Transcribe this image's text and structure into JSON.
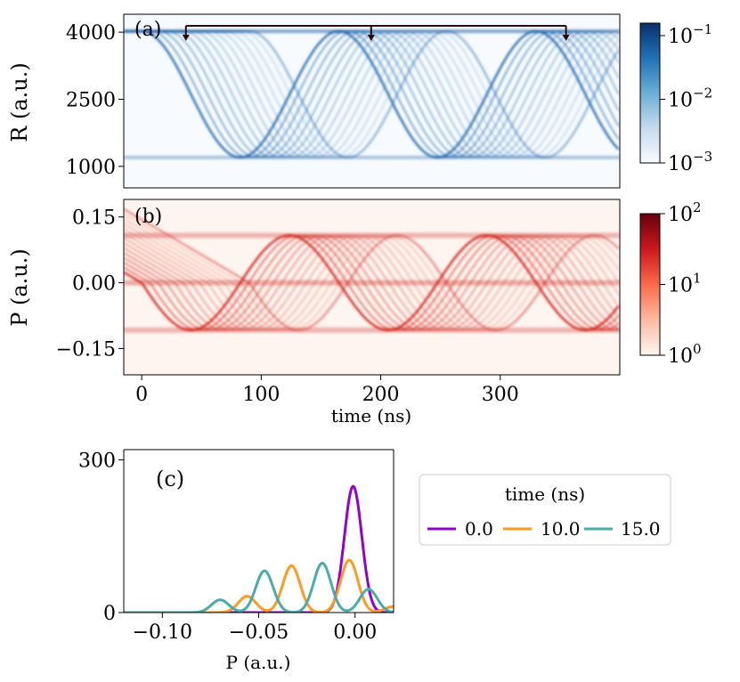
{
  "chart_data": [
    {
      "id": "a",
      "type": "heatmap",
      "panel_label": "(a)",
      "ylabel": "R (a.u.)",
      "xlim": [
        -15,
        400
      ],
      "ylim": [
        520,
        4400
      ],
      "yticks": [
        1000,
        2500,
        4000
      ],
      "ytick_labels": [
        "1000",
        "2500",
        "4000"
      ],
      "colormap": "Blues",
      "color_scale": "log",
      "colorbar_ticks": [
        {
          "base": "10",
          "exp": "−1"
        },
        {
          "base": "10",
          "exp": "−2"
        },
        {
          "base": "10",
          "exp": "−3"
        }
      ],
      "arrow_times_ns": [
        37,
        192,
        355
      ],
      "band_min": 1200,
      "band_max": 4020,
      "period_ns": 165,
      "fan_spread_ns": 90,
      "fan_tracks": 13
    },
    {
      "id": "b",
      "type": "heatmap",
      "panel_label": "(b)",
      "ylabel": "P (a.u.)",
      "xlabel": "time (ns)",
      "xlim": [
        -15,
        400
      ],
      "ylim": [
        -0.21,
        0.19
      ],
      "xticks": [
        0,
        100,
        200,
        300
      ],
      "xtick_labels": [
        "0",
        "100",
        "200",
        "300"
      ],
      "yticks": [
        0.15,
        0.0,
        -0.15
      ],
      "ytick_labels": [
        "0.15",
        "0.00",
        "−0.15"
      ],
      "colormap": "Reds",
      "color_scale": "log",
      "colorbar_ticks": [
        {
          "base": "10",
          "exp": "2"
        },
        {
          "base": "10",
          "exp": "1"
        },
        {
          "base": "10",
          "exp": "0"
        }
      ],
      "band_amplitude": 0.108,
      "period_ns": 165,
      "fan_spread_ns": 90,
      "fan_tracks": 13
    },
    {
      "id": "c",
      "type": "line",
      "panel_label": "(c)",
      "xlabel": "P (a.u.)",
      "xlim": [
        -0.12,
        0.02
      ],
      "ylim": [
        0,
        320
      ],
      "xticks": [
        -0.1,
        -0.05,
        0.0
      ],
      "xtick_labels": [
        "−0.10",
        "−0.05",
        "0.00"
      ],
      "yticks": [
        0,
        300
      ],
      "ytick_labels": [
        "0",
        "300"
      ],
      "legend_title": "time (ns)",
      "series": [
        {
          "name": "0.0",
          "color": "#9400d3",
          "peaks": [
            {
              "mu": -0.001,
              "sigma": 0.0045,
              "amp": 248
            }
          ]
        },
        {
          "name": "10.0",
          "color": "#ff9a1f",
          "peaks": [
            {
              "mu": -0.056,
              "sigma": 0.0045,
              "amp": 32
            },
            {
              "mu": -0.033,
              "sigma": 0.0045,
              "amp": 92
            },
            {
              "mu": -0.003,
              "sigma": 0.0045,
              "amp": 103
            },
            {
              "mu": 0.02,
              "sigma": 0.0045,
              "amp": 12
            }
          ]
        },
        {
          "name": "15.0",
          "color": "#4aabab",
          "peaks": [
            {
              "mu": -0.07,
              "sigma": 0.0045,
              "amp": 25
            },
            {
              "mu": -0.047,
              "sigma": 0.0045,
              "amp": 82
            },
            {
              "mu": -0.017,
              "sigma": 0.0045,
              "amp": 97
            },
            {
              "mu": 0.007,
              "sigma": 0.0045,
              "amp": 46
            }
          ]
        }
      ]
    }
  ]
}
